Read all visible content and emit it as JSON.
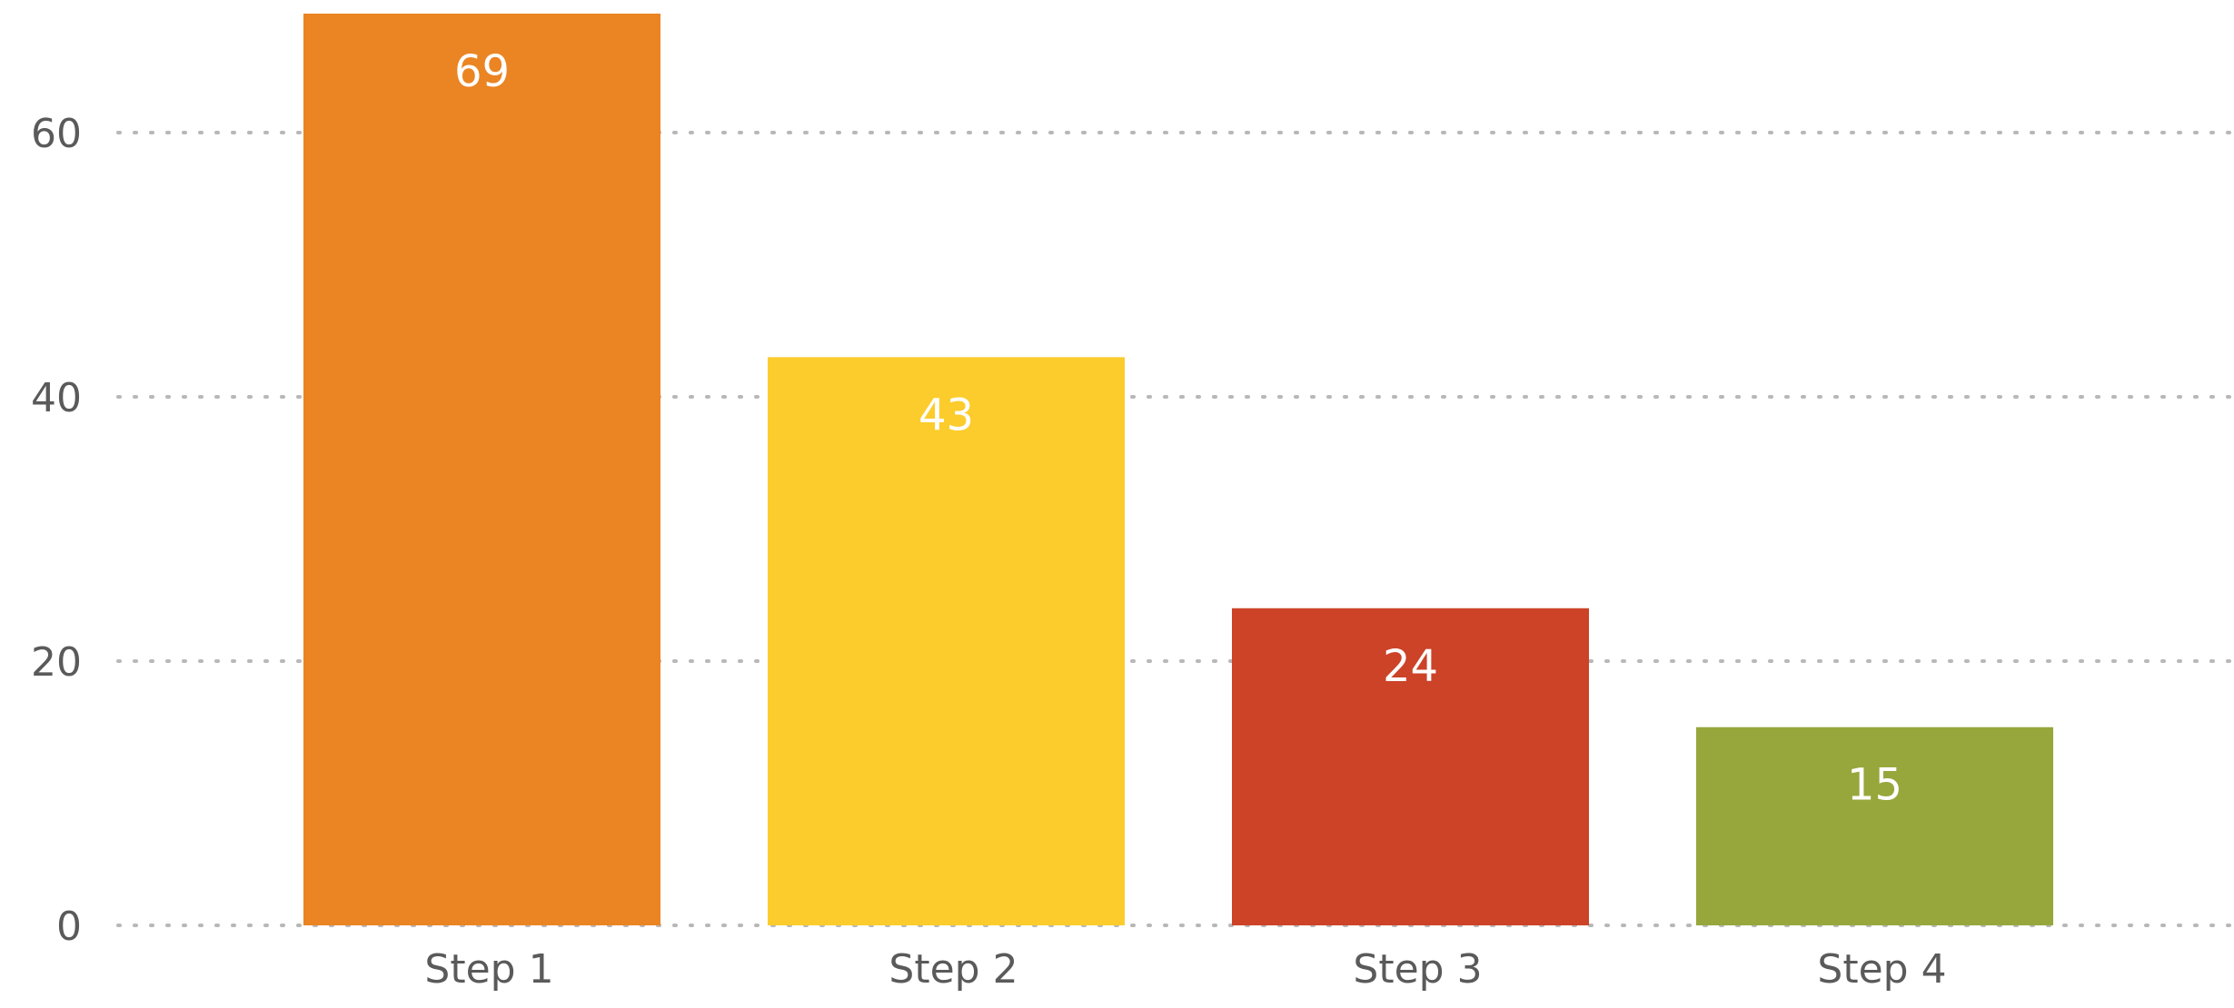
{
  "chart_data": {
    "type": "bar",
    "categories": [
      "Step 1",
      "Step 2",
      "Step 3",
      "Step 4"
    ],
    "values": [
      69,
      43,
      24,
      15
    ],
    "data_labels": [
      "69",
      "43",
      "24",
      "15"
    ],
    "colors": [
      "#EB8423",
      "#FCCC2C",
      "#CC4328",
      "#97A73C"
    ],
    "y_ticks": [
      0,
      20,
      40,
      60
    ],
    "y_tick_labels": [
      "0",
      "20",
      "40",
      "60"
    ],
    "ylim": [
      0,
      69
    ],
    "grid": true,
    "grid_style": "dotted",
    "title": "",
    "xlabel": "",
    "ylabel": "",
    "legend": "none"
  }
}
